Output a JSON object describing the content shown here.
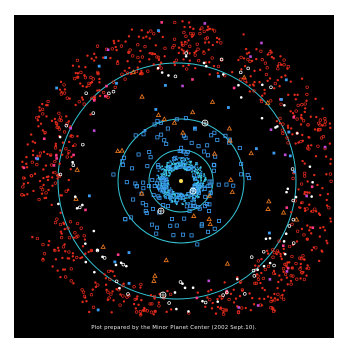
{
  "caption": "Plot prepared by the Minor Planet Center (2002 Sept.10).",
  "colors": {
    "background": "#000000",
    "orbit": "#35c6d6",
    "kuiper_belt": "#e02a1a",
    "scattered": "#ff3a8c",
    "centaur": "#f07a1e",
    "comet": "#3b9cf0",
    "trojan": "#2bbcd8",
    "high_q": "#ffffff",
    "purple": "#c04ad8"
  },
  "markers": {
    "planet_icon": "crosshair-circle-icon",
    "comet_icon": "open-square-icon",
    "centaur_icon": "open-triangle-icon",
    "object_icon": "filled-dot-icon"
  },
  "orbit_count": 4,
  "view": "Outer solar system, plan view"
}
